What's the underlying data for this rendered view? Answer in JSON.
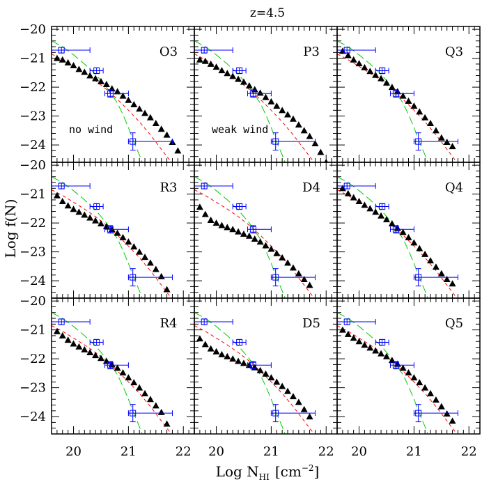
{
  "figure": {
    "title": "z=4.5",
    "xlabel_main": "Log N",
    "xlabel_sub": "HI",
    "xlabel_unit": "[cm",
    "xlabel_exp": "−2",
    "xlabel_close": "]",
    "ylabel": "Log f(N)",
    "colors": {
      "sim": "#000000",
      "obs": "#0000ff",
      "fit_red": "#ff0000",
      "fit_green": "#00cc00"
    }
  },
  "chart_data": {
    "type": "scatter",
    "layout": "3x3 grid of panels with shared axes",
    "xlim": [
      19.6,
      22.2
    ],
    "ylim": [
      -24.6,
      -19.9
    ],
    "xticks": [
      20,
      21,
      22
    ],
    "yticks": [
      -20,
      -21,
      -22,
      -23,
      -24
    ],
    "xtick_labels": [
      "20",
      "21",
      "22"
    ],
    "ytick_labels": [
      "−20",
      "−21",
      "−22",
      "−23",
      "−24"
    ],
    "observed": {
      "marker": "open-square-with-errorbars",
      "points": [
        {
          "x": 19.78,
          "y": -20.72,
          "xerr": [
            0.18,
            0.52
          ],
          "yerr": [
            0.1,
            0.1
          ]
        },
        {
          "x": 20.42,
          "y": -21.43,
          "xerr": [
            0.12,
            0.12
          ],
          "yerr": [
            0.1,
            0.1
          ]
        },
        {
          "x": 20.67,
          "y": -22.22,
          "xerr": [
            0.1,
            0.33
          ],
          "yerr": [
            0.13,
            0.13
          ]
        },
        {
          "x": 21.08,
          "y": -23.88,
          "xerr": [
            0.08,
            0.72
          ],
          "yerr": [
            0.3,
            0.3
          ]
        }
      ]
    },
    "fits": [
      {
        "style": "short-dash",
        "color": "#ff0000",
        "x": [
          19.6,
          19.8,
          20.0,
          20.2,
          20.4,
          20.6,
          20.8,
          21.0,
          21.2,
          21.4,
          21.6,
          21.8
        ],
        "y": [
          -20.85,
          -21.05,
          -21.28,
          -21.52,
          -21.78,
          -22.08,
          -22.42,
          -22.8,
          -23.2,
          -23.65,
          -24.15,
          -24.65
        ]
      },
      {
        "style": "long-dash",
        "color": "#00cc00",
        "x": [
          19.6,
          19.8,
          20.0,
          20.2,
          20.4,
          20.6,
          20.8,
          20.9,
          21.0,
          21.1,
          21.2,
          21.25
        ],
        "y": [
          -20.4,
          -20.6,
          -20.88,
          -21.2,
          -21.55,
          -22.0,
          -22.55,
          -22.95,
          -23.4,
          -23.9,
          -24.35,
          -24.6
        ]
      }
    ],
    "panels": [
      {
        "label": "O3",
        "annotation": "no wind",
        "x": [
          19.7,
          19.8,
          19.9,
          20.0,
          20.1,
          20.2,
          20.3,
          20.4,
          20.5,
          20.6,
          20.7,
          20.8,
          20.9,
          21.0,
          21.1,
          21.2,
          21.3,
          21.4,
          21.5,
          21.6,
          21.7,
          21.8,
          21.9
        ],
        "y": [
          -21.0,
          -21.05,
          -21.15,
          -21.25,
          -21.38,
          -21.48,
          -21.6,
          -21.7,
          -21.8,
          -21.9,
          -22.05,
          -22.15,
          -22.3,
          -22.45,
          -22.6,
          -22.75,
          -22.9,
          -23.05,
          -23.25,
          -23.45,
          -23.65,
          -23.9,
          -24.2
        ]
      },
      {
        "label": "P3",
        "annotation": "weak wind",
        "x": [
          19.7,
          19.8,
          19.9,
          20.0,
          20.1,
          20.2,
          20.3,
          20.4,
          20.5,
          20.6,
          20.7,
          20.8,
          20.9,
          21.0,
          21.1,
          21.2,
          21.3,
          21.4,
          21.5,
          21.6,
          21.7,
          21.8,
          21.9,
          22.0
        ],
        "y": [
          -21.05,
          -21.1,
          -21.2,
          -21.3,
          -21.42,
          -21.52,
          -21.62,
          -21.72,
          -21.82,
          -21.95,
          -22.08,
          -22.2,
          -22.35,
          -22.5,
          -22.65,
          -22.8,
          -22.95,
          -23.1,
          -23.3,
          -23.5,
          -23.7,
          -23.95,
          -24.25,
          -24.6
        ]
      },
      {
        "label": "Q3",
        "annotation": "",
        "x": [
          19.7,
          19.8,
          19.9,
          20.0,
          20.1,
          20.2,
          20.3,
          20.4,
          20.5,
          20.6,
          20.7,
          20.8,
          20.9,
          21.0,
          21.1,
          21.2,
          21.3,
          21.4,
          21.5,
          21.6,
          21.7
        ],
        "y": [
          -20.75,
          -20.9,
          -21.05,
          -21.18,
          -21.32,
          -21.45,
          -21.58,
          -21.7,
          -21.85,
          -22.0,
          -22.15,
          -22.3,
          -22.48,
          -22.65,
          -22.85,
          -23.05,
          -23.25,
          -23.5,
          -23.75,
          -23.9,
          -24.05
        ]
      },
      {
        "label": "R3",
        "annotation": "",
        "x": [
          19.7,
          19.8,
          19.9,
          20.0,
          20.1,
          20.2,
          20.3,
          20.4,
          20.5,
          20.6,
          20.7,
          20.8,
          20.9,
          21.0,
          21.1,
          21.2,
          21.3,
          21.4,
          21.5,
          21.6,
          21.7
        ],
        "y": [
          -21.05,
          -21.25,
          -21.4,
          -21.52,
          -21.62,
          -21.72,
          -21.82,
          -21.92,
          -22.02,
          -22.12,
          -22.22,
          -22.35,
          -22.5,
          -22.65,
          -22.82,
          -23.0,
          -23.18,
          -23.38,
          -23.6,
          -23.85,
          -24.3
        ]
      },
      {
        "label": "D4",
        "annotation": "",
        "x": [
          19.7,
          19.8,
          19.9,
          20.0,
          20.1,
          20.2,
          20.3,
          20.4,
          20.5,
          20.6,
          20.7,
          20.8,
          20.9,
          21.0,
          21.1,
          21.2,
          21.3,
          21.4,
          21.5,
          21.6,
          21.7
        ],
        "y": [
          -21.45,
          -21.7,
          -21.9,
          -22.0,
          -22.08,
          -22.15,
          -22.22,
          -22.3,
          -22.38,
          -22.45,
          -22.55,
          -22.65,
          -22.78,
          -22.9,
          -23.05,
          -23.2,
          -23.38,
          -23.55,
          -23.75,
          -23.95,
          -24.15
        ]
      },
      {
        "label": "Q4",
        "annotation": "",
        "x": [
          19.7,
          19.8,
          19.9,
          20.0,
          20.1,
          20.2,
          20.3,
          20.4,
          20.5,
          20.6,
          20.7,
          20.8,
          20.9,
          21.0,
          21.1,
          21.2,
          21.3,
          21.4,
          21.5,
          21.6,
          21.7
        ],
        "y": [
          -20.8,
          -20.98,
          -21.12,
          -21.25,
          -21.38,
          -21.5,
          -21.62,
          -21.75,
          -21.88,
          -22.02,
          -22.18,
          -22.32,
          -22.5,
          -22.68,
          -22.88,
          -23.08,
          -23.3,
          -23.52,
          -23.75,
          -23.95,
          -24.1
        ]
      },
      {
        "label": "R4",
        "annotation": "",
        "x": [
          19.7,
          19.8,
          19.9,
          20.0,
          20.1,
          20.2,
          20.3,
          20.4,
          20.5,
          20.6,
          20.7,
          20.8,
          20.9,
          21.0,
          21.1,
          21.2,
          21.3,
          21.4,
          21.5,
          21.6,
          21.7
        ],
        "y": [
          -21.05,
          -21.2,
          -21.35,
          -21.48,
          -21.58,
          -21.68,
          -21.78,
          -21.88,
          -21.98,
          -22.08,
          -22.2,
          -22.32,
          -22.48,
          -22.65,
          -22.82,
          -23.0,
          -23.2,
          -23.4,
          -23.62,
          -23.85,
          -24.25
        ]
      },
      {
        "label": "D5",
        "annotation": "",
        "x": [
          19.7,
          19.8,
          19.9,
          20.0,
          20.1,
          20.2,
          20.3,
          20.4,
          20.5,
          20.6,
          20.7,
          20.8,
          20.9,
          21.0,
          21.1,
          21.2,
          21.3,
          21.4,
          21.5,
          21.6,
          21.7
        ],
        "y": [
          -21.3,
          -21.5,
          -21.65,
          -21.75,
          -21.85,
          -21.92,
          -22.0,
          -22.08,
          -22.15,
          -22.22,
          -22.3,
          -22.4,
          -22.52,
          -22.65,
          -22.8,
          -22.95,
          -23.12,
          -23.3,
          -23.5,
          -23.75,
          -24.0
        ]
      },
      {
        "label": "Q5",
        "annotation": "",
        "x": [
          19.7,
          19.8,
          19.9,
          20.0,
          20.1,
          20.2,
          20.3,
          20.4,
          20.5,
          20.6,
          20.7,
          20.8,
          20.9,
          21.0,
          21.1,
          21.2,
          21.3,
          21.4,
          21.5,
          21.6,
          21.7
        ],
        "y": [
          -21.0,
          -21.15,
          -21.28,
          -21.4,
          -21.52,
          -21.62,
          -21.72,
          -21.82,
          -21.92,
          -22.05,
          -22.18,
          -22.32,
          -22.48,
          -22.65,
          -22.82,
          -23.0,
          -23.2,
          -23.42,
          -23.65,
          -23.9,
          -24.15
        ]
      }
    ]
  }
}
